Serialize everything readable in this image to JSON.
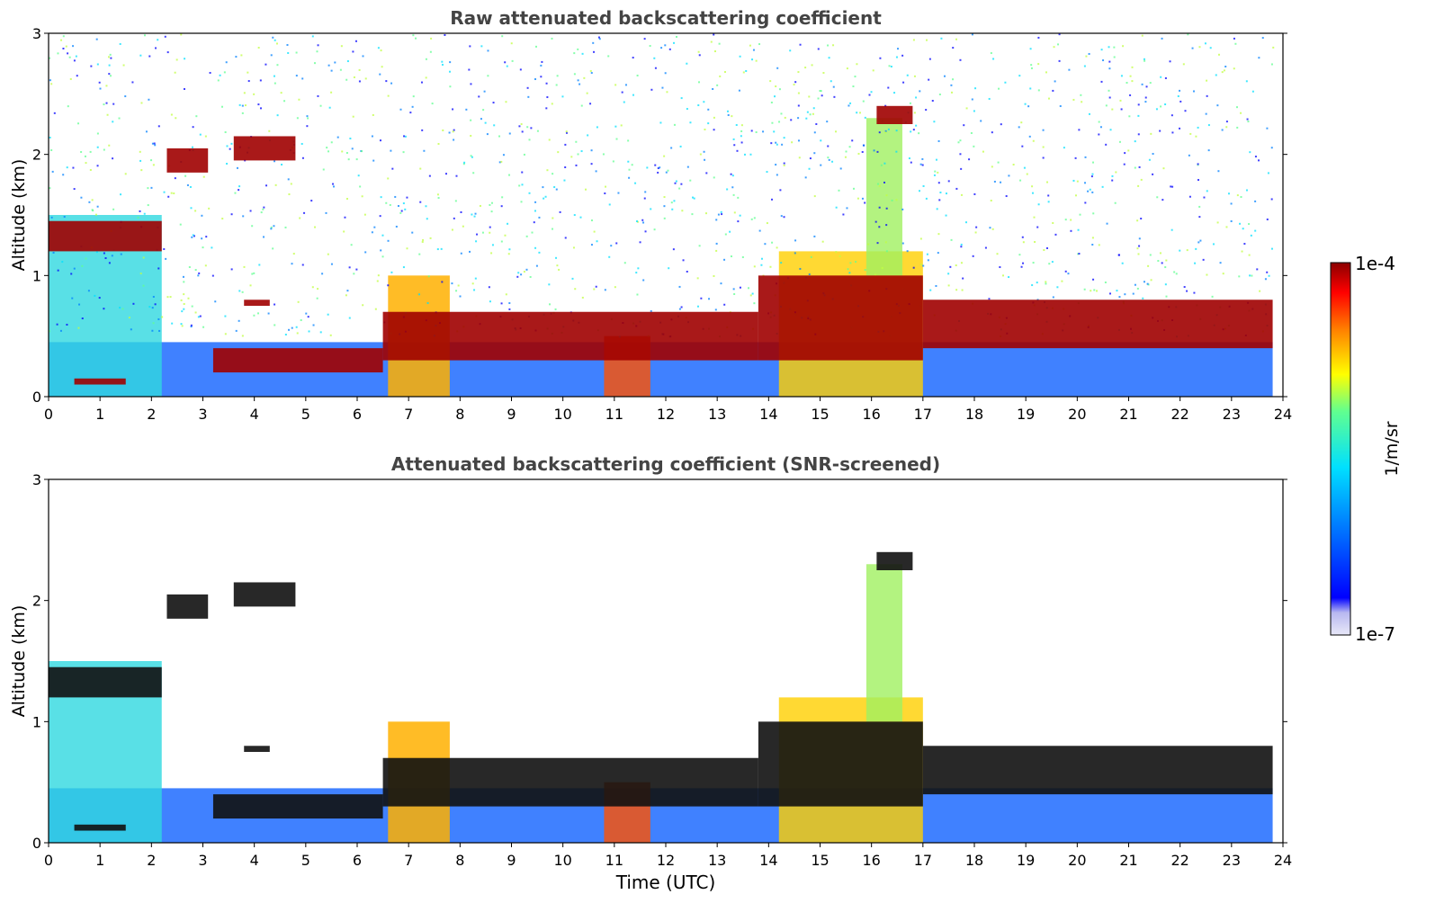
{
  "chart_data": [
    {
      "type": "heatmap",
      "title": "Raw attenuated backscattering coefficient",
      "xlabel": "",
      "ylabel": "Altitude (km)",
      "xlim": [
        0,
        24
      ],
      "ylim": [
        0,
        3
      ],
      "xticks": [
        "0",
        "1",
        "2",
        "3",
        "4",
        "5",
        "6",
        "7",
        "8",
        "9",
        "10",
        "11",
        "12",
        "13",
        "14",
        "15",
        "16",
        "17",
        "18",
        "19",
        "20",
        "21",
        "22",
        "23",
        "24"
      ],
      "yticks": [
        "0",
        "1",
        "2",
        "3"
      ],
      "data_end_hour": 23.8,
      "noise": true,
      "layers": [
        {
          "x": [
            0.0,
            2.2
          ],
          "alt": [
            1.2,
            1.45
          ]
        },
        {
          "x": [
            0.5,
            1.5
          ],
          "alt": [
            0.1,
            0.15
          ]
        },
        {
          "x": [
            2.3,
            3.1
          ],
          "alt": [
            1.85,
            2.05
          ]
        },
        {
          "x": [
            3.6,
            4.8
          ],
          "alt": [
            1.95,
            2.15
          ]
        },
        {
          "x": [
            3.8,
            4.3
          ],
          "alt": [
            0.75,
            0.8
          ]
        },
        {
          "x": [
            3.2,
            6.5
          ],
          "alt": [
            0.2,
            0.4
          ]
        },
        {
          "x": [
            6.5,
            13.8
          ],
          "alt": [
            0.3,
            0.7
          ]
        },
        {
          "x": [
            13.8,
            17.0
          ],
          "alt": [
            0.3,
            1.0
          ]
        },
        {
          "x": [
            16.1,
            16.8
          ],
          "alt": [
            2.25,
            2.4
          ]
        },
        {
          "x": [
            17.0,
            23.8
          ],
          "alt": [
            0.4,
            0.8
          ]
        }
      ]
    },
    {
      "type": "heatmap",
      "title": "Attenuated backscattering coefficient (SNR-screened)",
      "xlabel": "Time (UTC)",
      "ylabel": "Altitude (km)",
      "xlim": [
        0,
        24
      ],
      "ylim": [
        0,
        3
      ],
      "xticks": [
        "0",
        "1",
        "2",
        "3",
        "4",
        "5",
        "6",
        "7",
        "8",
        "9",
        "10",
        "11",
        "12",
        "13",
        "14",
        "15",
        "16",
        "17",
        "18",
        "19",
        "20",
        "21",
        "22",
        "23",
        "24"
      ],
      "yticks": [
        "0",
        "1",
        "2",
        "3"
      ],
      "data_end_hour": 23.8,
      "noise": false,
      "layers": [
        {
          "x": [
            0.0,
            2.2
          ],
          "alt": [
            1.2,
            1.45
          ]
        },
        {
          "x": [
            0.5,
            1.5
          ],
          "alt": [
            0.1,
            0.15
          ]
        },
        {
          "x": [
            2.3,
            3.1
          ],
          "alt": [
            1.85,
            2.05
          ]
        },
        {
          "x": [
            3.6,
            4.8
          ],
          "alt": [
            1.95,
            2.15
          ]
        },
        {
          "x": [
            3.8,
            4.3
          ],
          "alt": [
            0.75,
            0.8
          ]
        },
        {
          "x": [
            3.2,
            6.5
          ],
          "alt": [
            0.2,
            0.4
          ]
        },
        {
          "x": [
            6.5,
            13.8
          ],
          "alt": [
            0.3,
            0.7
          ]
        },
        {
          "x": [
            13.8,
            17.0
          ],
          "alt": [
            0.3,
            1.0
          ]
        },
        {
          "x": [
            16.1,
            16.8
          ],
          "alt": [
            2.25,
            2.4
          ]
        },
        {
          "x": [
            17.0,
            23.8
          ],
          "alt": [
            0.4,
            0.8
          ]
        }
      ]
    }
  ],
  "colorbar": {
    "label": "1/m/sr",
    "max_label": "1e-4",
    "min_label": "1e-7",
    "range": [
      1e-07,
      0.0001
    ],
    "scale": "log",
    "colormap": "jet",
    "colors": [
      "#e8e8f8",
      "#0000ff",
      "#0080ff",
      "#00e0ff",
      "#60ff90",
      "#ffff00",
      "#ff8000",
      "#ff0000",
      "#8b0000"
    ]
  }
}
